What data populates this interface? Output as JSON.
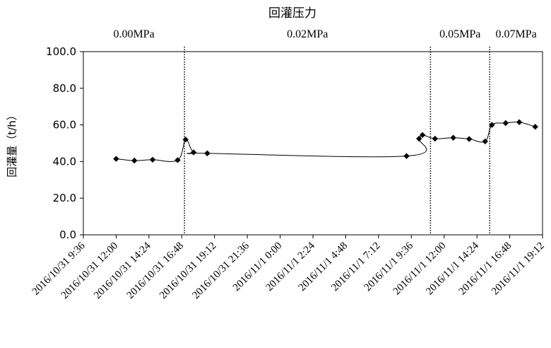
{
  "chart_data": {
    "type": "line",
    "title": "回灌压力",
    "ylabel": "回灌量（t/h）",
    "xlabel": "",
    "ylim": [
      0,
      100
    ],
    "yticks": [
      "0.0",
      "20.0",
      "40.0",
      "60.0",
      "80.0",
      "100.0"
    ],
    "x_range": [
      "2016-10-31T09:36",
      "2016-11-01T19:12"
    ],
    "xticks": [
      "2016/10/31 9:36",
      "2016/10/31 12:00",
      "2016/10/31 14:24",
      "2016/10/31 16:48",
      "2016/10/31 19:12",
      "2016/10/31 21:36",
      "2016/11/1 0:00",
      "2016/11/1 2:24",
      "2016/11/1 4:48",
      "2016/11/1 7:12",
      "2016/11/1 9:36",
      "2016/11/1 12:00",
      "2016/11/1 14:24",
      "2016/11/1 16:48",
      "2016/11/1 19:12"
    ],
    "pressure_zones": [
      {
        "label": "0.00MPa"
      },
      {
        "label": "0.02MPa"
      },
      {
        "label": "0.05MPa"
      },
      {
        "label": "0.07MPa"
      }
    ],
    "dividers": [
      "2016-10-31T17:00",
      "2016-11-01T11:00",
      "2016-11-01T15:20"
    ],
    "series": [
      {
        "marker": "diamond",
        "color": "#000000",
        "points": [
          {
            "x": "2016-10-31T12:00",
            "y": 41.5
          },
          {
            "x": "2016-10-31T13:20",
            "y": 40.5
          },
          {
            "x": "2016-10-31T14:40",
            "y": 41.0
          },
          {
            "x": "2016-10-31T16:30",
            "y": 40.8
          },
          {
            "x": "2016-10-31T17:05",
            "y": 52.0
          },
          {
            "x": "2016-10-31T17:40",
            "y": 45.0
          },
          {
            "x": "2016-10-31T18:40",
            "y": 44.5
          },
          {
            "x": "2016-11-01T09:15",
            "y": 43.0
          },
          {
            "x": "2016-11-01T10:10",
            "y": 52.5
          },
          {
            "x": "2016-11-01T10:25",
            "y": 54.5
          },
          {
            "x": "2016-11-01T11:20",
            "y": 52.5
          },
          {
            "x": "2016-11-01T12:40",
            "y": 53.0
          },
          {
            "x": "2016-11-01T13:50",
            "y": 52.3
          },
          {
            "x": "2016-11-01T15:00",
            "y": 51.0
          },
          {
            "x": "2016-11-01T15:30",
            "y": 60.0
          },
          {
            "x": "2016-11-01T16:30",
            "y": 61.0
          },
          {
            "x": "2016-11-01T17:30",
            "y": 61.5
          },
          {
            "x": "2016-11-01T18:40",
            "y": 59.0
          }
        ]
      }
    ]
  }
}
